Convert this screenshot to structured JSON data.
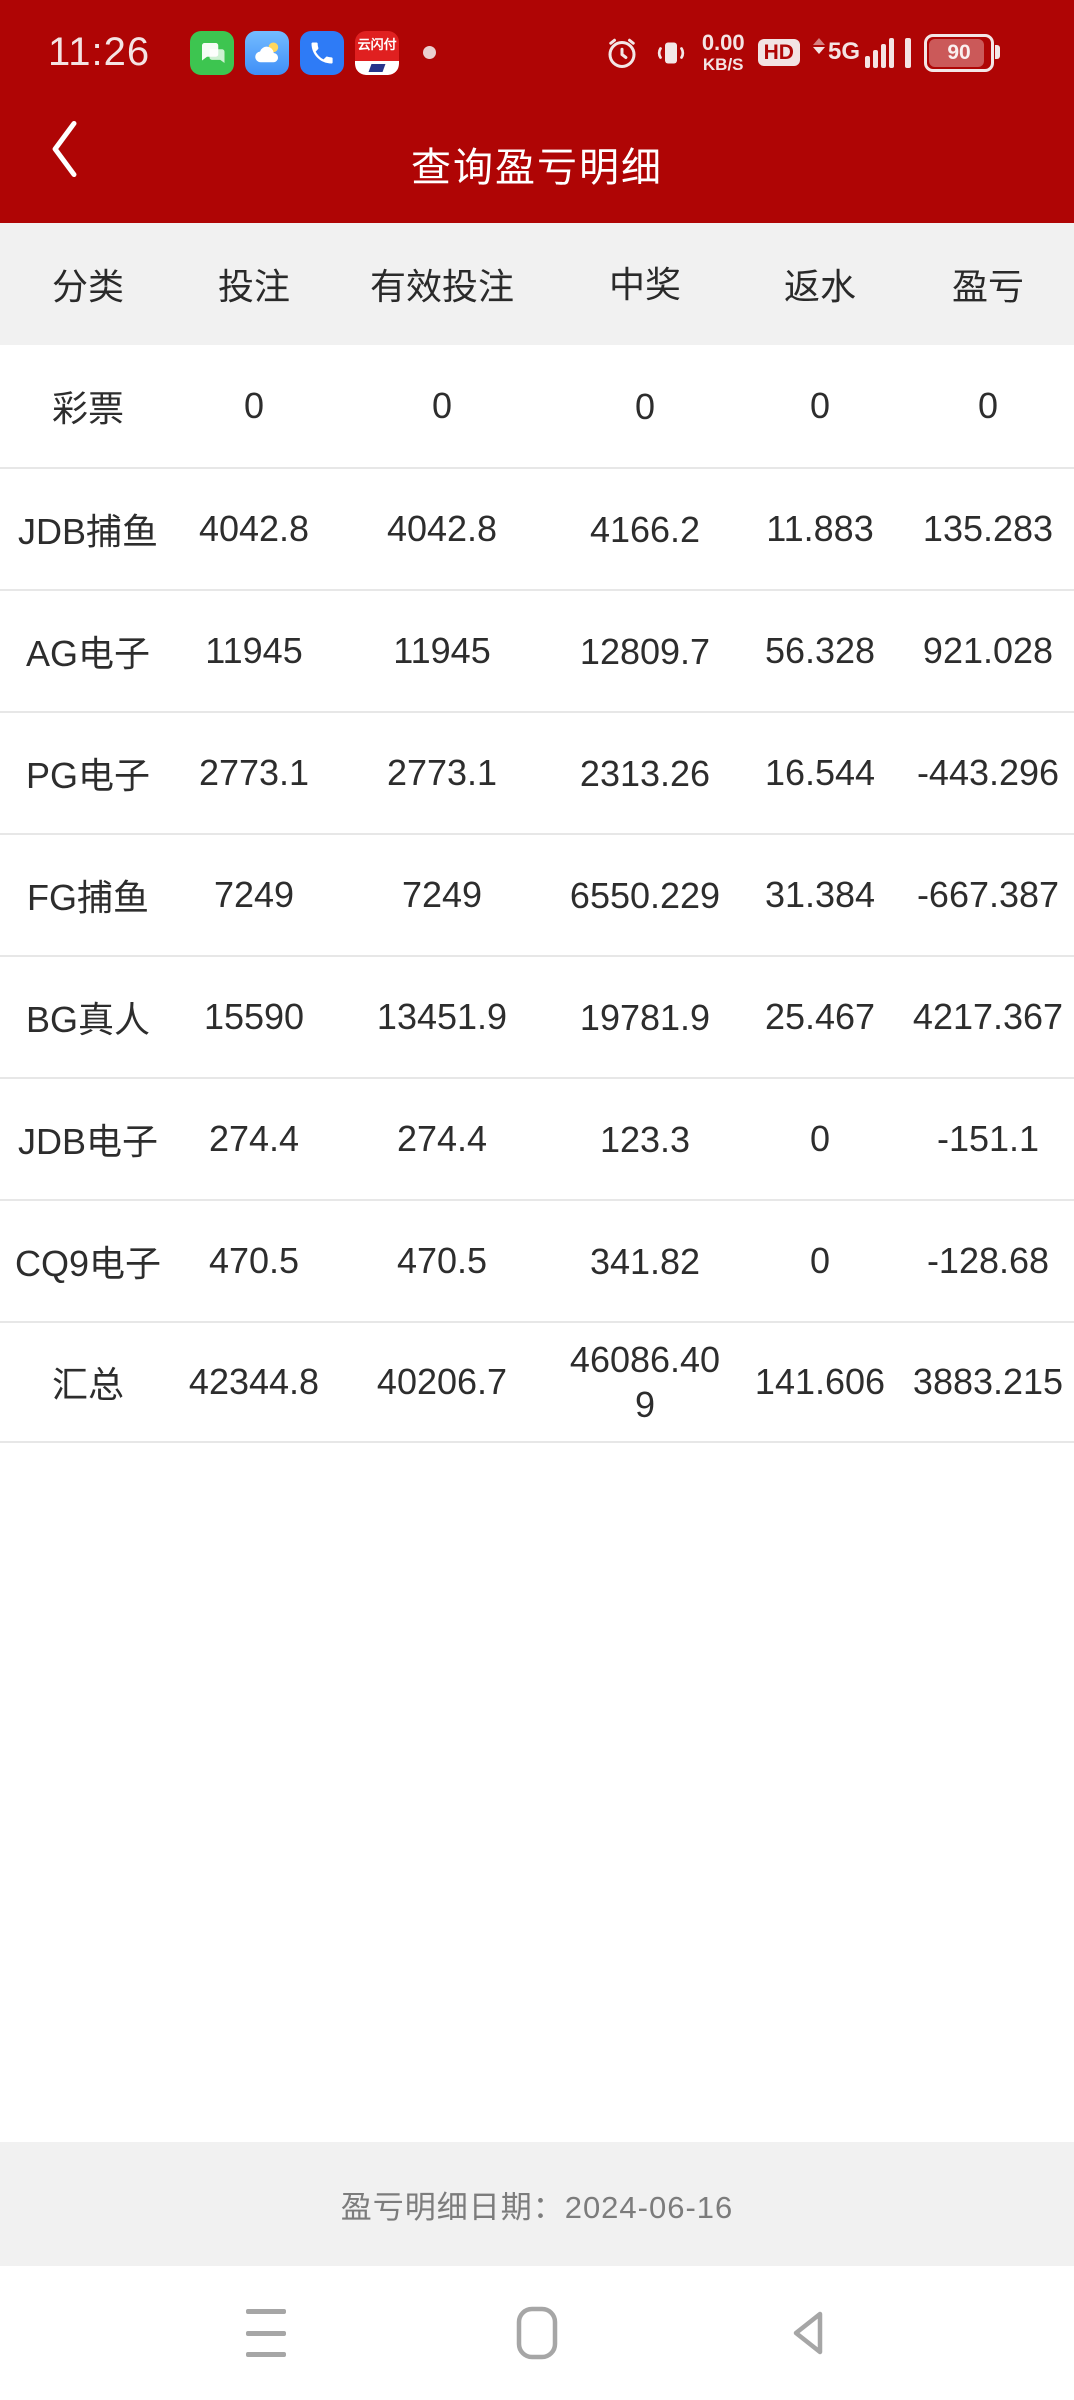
{
  "status_bar": {
    "time": "11:26",
    "unionpay_label": "云闪付",
    "speed_value": "0.00",
    "speed_unit": "KB/S",
    "hd_label": "HD",
    "network_type": "5G",
    "battery_percent": "90"
  },
  "header": {
    "title": "查询盈亏明细"
  },
  "table": {
    "columns": [
      "分类",
      "投注",
      "有效投注",
      "中奖",
      "返水",
      "盈亏"
    ],
    "rows": [
      {
        "category": "彩票",
        "bet": "0",
        "valid_bet": "0",
        "win": "0",
        "rebate": "0",
        "profit": "0"
      },
      {
        "category": "JDB捕鱼",
        "bet": "4042.8",
        "valid_bet": "4042.8",
        "win": "4166.2",
        "rebate": "11.883",
        "profit": "135.283"
      },
      {
        "category": "AG电子",
        "bet": "11945",
        "valid_bet": "11945",
        "win": "12809.7",
        "rebate": "56.328",
        "profit": "921.028"
      },
      {
        "category": "PG电子",
        "bet": "2773.1",
        "valid_bet": "2773.1",
        "win": "2313.26",
        "rebate": "16.544",
        "profit": "-443.296"
      },
      {
        "category": "FG捕鱼",
        "bet": "7249",
        "valid_bet": "7249",
        "win": "6550.229",
        "rebate": "31.384",
        "profit": "-667.387"
      },
      {
        "category": "BG真人",
        "bet": "15590",
        "valid_bet": "13451.9",
        "win": "19781.9",
        "rebate": "25.467",
        "profit": "4217.367"
      },
      {
        "category": "JDB电子",
        "bet": "274.4",
        "valid_bet": "274.4",
        "win": "123.3",
        "rebate": "0",
        "profit": "-151.1"
      },
      {
        "category": "CQ9电子",
        "bet": "470.5",
        "valid_bet": "470.5",
        "win": "341.82",
        "rebate": "0",
        "profit": "-128.68"
      },
      {
        "category": "汇总",
        "bet": "42344.8",
        "valid_bet": "40206.7",
        "win": "46086.409",
        "rebate": "141.606",
        "profit": "3883.215"
      }
    ]
  },
  "footer": {
    "date_label": "盈亏明细日期：2024-06-16"
  },
  "colors": {
    "accent_red": "#AF0505",
    "negative_green": "#5CC41F",
    "header_gray": "#F1F1F1"
  }
}
